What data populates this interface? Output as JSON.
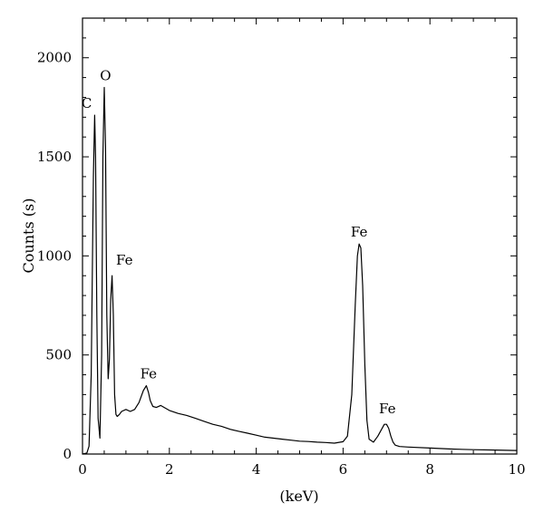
{
  "chart_data": {
    "type": "line",
    "title": "",
    "xlabel": "(keV)",
    "ylabel": "Counts (s)",
    "xlim": [
      0,
      10
    ],
    "ylim": [
      0,
      2200
    ],
    "xticks": [
      0,
      2,
      4,
      6,
      8,
      10
    ],
    "xtick_labels": [
      "0",
      "2",
      "4",
      "6",
      "8",
      "10"
    ],
    "yticks": [
      0,
      500,
      1000,
      1500,
      2000
    ],
    "ytick_labels": [
      "0",
      "500",
      "1000",
      "1500",
      "2000"
    ],
    "grid": false,
    "legend": "none",
    "series": [
      {
        "color": "#000000",
        "x": [
          0.0,
          0.1,
          0.15,
          0.2,
          0.25,
          0.28,
          0.3,
          0.33,
          0.36,
          0.4,
          0.44,
          0.47,
          0.5,
          0.53,
          0.56,
          0.59,
          0.62,
          0.65,
          0.68,
          0.71,
          0.74,
          0.77,
          0.8,
          0.85,
          0.9,
          1.0,
          1.1,
          1.2,
          1.3,
          1.4,
          1.47,
          1.52,
          1.56,
          1.62,
          1.7,
          1.8,
          2.0,
          2.2,
          2.4,
          2.6,
          2.8,
          3.0,
          3.2,
          3.4,
          3.6,
          3.8,
          4.0,
          4.2,
          4.4,
          4.6,
          4.8,
          5.0,
          5.2,
          5.4,
          5.6,
          5.8,
          6.0,
          6.1,
          6.2,
          6.28,
          6.33,
          6.37,
          6.41,
          6.45,
          6.5,
          6.55,
          6.6,
          6.7,
          6.8,
          6.9,
          6.95,
          7.0,
          7.05,
          7.1,
          7.15,
          7.2,
          7.3,
          7.5,
          8.0,
          8.5,
          9.0,
          9.5,
          10.0
        ],
        "y": [
          0,
          5,
          40,
          400,
          1400,
          1710,
          1500,
          700,
          180,
          80,
          500,
          1500,
          1850,
          1550,
          700,
          380,
          480,
          780,
          900,
          700,
          300,
          200,
          190,
          200,
          215,
          225,
          215,
          225,
          260,
          320,
          345,
          310,
          270,
          240,
          235,
          245,
          220,
          205,
          195,
          180,
          165,
          150,
          140,
          125,
          115,
          105,
          95,
          85,
          80,
          75,
          70,
          65,
          63,
          60,
          58,
          55,
          62,
          90,
          300,
          750,
          1000,
          1060,
          1040,
          850,
          450,
          170,
          75,
          60,
          90,
          130,
          150,
          150,
          130,
          90,
          60,
          45,
          38,
          35,
          30,
          25,
          22,
          20,
          18
        ]
      }
    ],
    "annotations": [
      {
        "text": "C",
        "x": 0.28,
        "y": 1710
      },
      {
        "text": "O",
        "x": 0.53,
        "y": 1850
      },
      {
        "text": "Fe",
        "x": 0.71,
        "y": 900
      },
      {
        "text": "Fe",
        "x": 1.52,
        "y": 345
      },
      {
        "text": "Fe",
        "x": 6.37,
        "y": 1060
      },
      {
        "text": "Fe",
        "x": 7.02,
        "y": 150
      }
    ]
  }
}
